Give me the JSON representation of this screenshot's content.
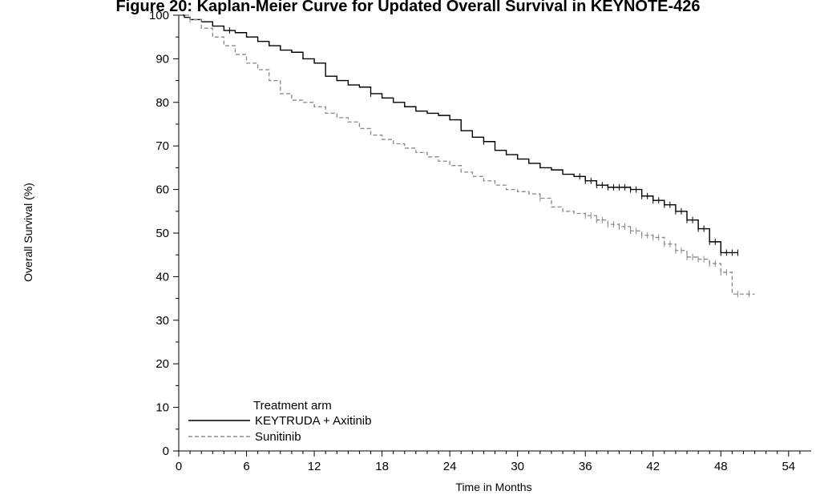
{
  "chart_data": {
    "type": "line",
    "title": "Figure 20: Kaplan-Meier Curve for Updated Overall Survival in KEYNOTE-426",
    "xlabel": "Time in Months",
    "ylabel": "Overall Survival (%)",
    "xlim": [
      0,
      56
    ],
    "ylim": [
      0,
      100
    ],
    "x_ticks": [
      0,
      6,
      12,
      18,
      24,
      30,
      36,
      42,
      48,
      54
    ],
    "y_ticks": [
      0,
      10,
      20,
      30,
      40,
      50,
      60,
      70,
      80,
      90,
      100
    ],
    "grid": false,
    "step": true,
    "legend": {
      "title": "Treatment arm",
      "placement": "bottom-left"
    },
    "series": [
      {
        "name": "KEYTRUDA + Axitinib",
        "color": "#000000",
        "dash": "solid",
        "points": [
          [
            0,
            100
          ],
          [
            0.5,
            99.5
          ],
          [
            1,
            99
          ],
          [
            2,
            98.5
          ],
          [
            3,
            97.5
          ],
          [
            4,
            96.5
          ],
          [
            5,
            96
          ],
          [
            6,
            95
          ],
          [
            7,
            94
          ],
          [
            8,
            93
          ],
          [
            9,
            92
          ],
          [
            10,
            91.5
          ],
          [
            11,
            90
          ],
          [
            12,
            89
          ],
          [
            13,
            86
          ],
          [
            14,
            85
          ],
          [
            15,
            84
          ],
          [
            16,
            83.5
          ],
          [
            17,
            82
          ],
          [
            18,
            81
          ],
          [
            19,
            80
          ],
          [
            20,
            79
          ],
          [
            21,
            78
          ],
          [
            22,
            77.5
          ],
          [
            23,
            77
          ],
          [
            24,
            76
          ],
          [
            25,
            73.5
          ],
          [
            26,
            72
          ],
          [
            27,
            71
          ],
          [
            28,
            69
          ],
          [
            29,
            68
          ],
          [
            30,
            67
          ],
          [
            31,
            66
          ],
          [
            32,
            65
          ],
          [
            33,
            64.5
          ],
          [
            34,
            63.5
          ],
          [
            35,
            63
          ],
          [
            36,
            62
          ],
          [
            37,
            61
          ],
          [
            38,
            60.5
          ],
          [
            39,
            60.5
          ],
          [
            40,
            60
          ],
          [
            41,
            58.5
          ],
          [
            42,
            57.5
          ],
          [
            43,
            56.5
          ],
          [
            44,
            55
          ],
          [
            45,
            53
          ],
          [
            46,
            51
          ],
          [
            47,
            48
          ],
          [
            48,
            45.5
          ],
          [
            49,
            45.5
          ],
          [
            49.5,
            45.5
          ]
        ],
        "censored": [
          4.5,
          17,
          27,
          35.5,
          36,
          36.5,
          37,
          37.5,
          38,
          38.5,
          39,
          39.5,
          40,
          40.5,
          41,
          41.5,
          42,
          42.5,
          43,
          43.5,
          44,
          44.5,
          45,
          45.5,
          46,
          46.5,
          47,
          47.5,
          48,
          48.5,
          49,
          49.5
        ]
      },
      {
        "name": "Sunitinib",
        "color": "#888888",
        "dash": "dashed",
        "points": [
          [
            0,
            100
          ],
          [
            1,
            99
          ],
          [
            2,
            97
          ],
          [
            3,
            95
          ],
          [
            4,
            93
          ],
          [
            5,
            91
          ],
          [
            6,
            89
          ],
          [
            7,
            87.5
          ],
          [
            8,
            85
          ],
          [
            9,
            82
          ],
          [
            10,
            80.5
          ],
          [
            11,
            80
          ],
          [
            12,
            79
          ],
          [
            13,
            77.5
          ],
          [
            14,
            76.5
          ],
          [
            15,
            75.5
          ],
          [
            16,
            74
          ],
          [
            17,
            72.5
          ],
          [
            18,
            71.5
          ],
          [
            19,
            70.5
          ],
          [
            20,
            69.5
          ],
          [
            21,
            68.5
          ],
          [
            22,
            67.5
          ],
          [
            23,
            66.5
          ],
          [
            24,
            65.5
          ],
          [
            25,
            64
          ],
          [
            26,
            63
          ],
          [
            27,
            62
          ],
          [
            28,
            61
          ],
          [
            29,
            60
          ],
          [
            30,
            59.5
          ],
          [
            31,
            59
          ],
          [
            32,
            58
          ],
          [
            33,
            56
          ],
          [
            34,
            55
          ],
          [
            35,
            54.5
          ],
          [
            36,
            54
          ],
          [
            37,
            53
          ],
          [
            38,
            52
          ],
          [
            39,
            51.5
          ],
          [
            40,
            50.5
          ],
          [
            41,
            49.5
          ],
          [
            42,
            49
          ],
          [
            43,
            47.5
          ],
          [
            44,
            46
          ],
          [
            45,
            44.5
          ],
          [
            46,
            44
          ],
          [
            47,
            43
          ],
          [
            48,
            41
          ],
          [
            49,
            36
          ],
          [
            50,
            36
          ],
          [
            51,
            36
          ]
        ],
        "censored": [
          1,
          32,
          36,
          36.5,
          37,
          37.5,
          38,
          38.5,
          39,
          39.5,
          40,
          40.5,
          41,
          41.5,
          42,
          42.5,
          43,
          43.5,
          44,
          44.5,
          45,
          45.5,
          46,
          46.5,
          47,
          47.5,
          48,
          48.5,
          49.5,
          50.5
        ]
      }
    ]
  }
}
